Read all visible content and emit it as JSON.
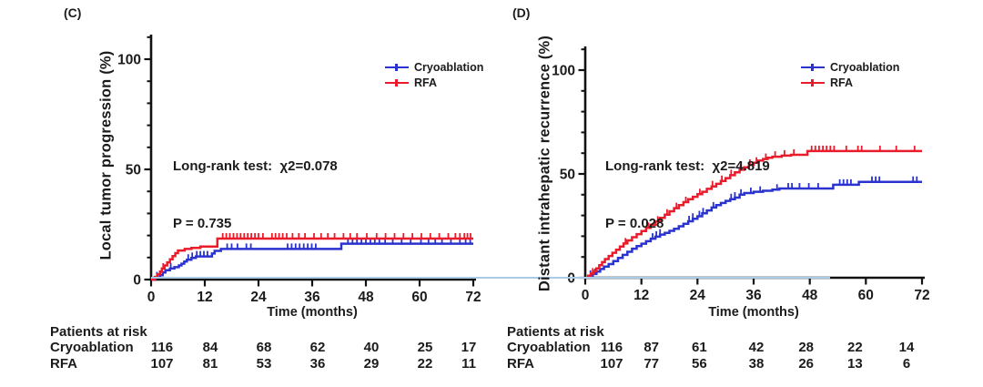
{
  "figure": {
    "background": "#ffffff"
  },
  "annotations": {
    "baseline_artifact_color": "#a9cbe8"
  },
  "chart_data": [
    {
      "panel_letter": "(C)",
      "type": "line",
      "subtype": "kaplan-meier-step",
      "ylabel": "Local tumor progression (%)",
      "xlabel": "Time (months)",
      "xticks": [
        0,
        12,
        24,
        36,
        48,
        60,
        72
      ],
      "yticks": [
        0,
        50,
        100
      ],
      "xlim": [
        0,
        72
      ],
      "ylim": [
        0,
        112
      ],
      "minor_y_step": 10,
      "grid": "off",
      "legend_position": "upper-right-inside",
      "stats": {
        "line1": "Long-rank test:  χ2=0.078",
        "line2": "P = 0.735"
      },
      "series": [
        {
          "name": "Cryoablation",
          "color": "#2a32cf",
          "points": [
            [
              0,
              0
            ],
            [
              1,
              1
            ],
            [
              2,
              2
            ],
            [
              2.6,
              3.2
            ],
            [
              3.2,
              4.2
            ],
            [
              4.2,
              5
            ],
            [
              5.2,
              5.6
            ],
            [
              6.2,
              6.4
            ],
            [
              6.8,
              7.2
            ],
            [
              7.4,
              8.2
            ],
            [
              8,
              9
            ],
            [
              9,
              9.8
            ],
            [
              10,
              10.5
            ],
            [
              13.6,
              11.8
            ],
            [
              14.2,
              13
            ],
            [
              15.6,
              13.9
            ],
            [
              42.5,
              16.3
            ],
            [
              72,
              16.3
            ]
          ],
          "censors": [
            1.3,
            4.4,
            8.3,
            9.2,
            10.2,
            11,
            11.8,
            12.6,
            17,
            18,
            19.3,
            21.3,
            22.3,
            30.5,
            31.4,
            32.3,
            33.2,
            34.1,
            35,
            35.9,
            36.8,
            44,
            45,
            46,
            47,
            48,
            49,
            50,
            51,
            52.3,
            54,
            56,
            58,
            60.3,
            62,
            63.5,
            65,
            67,
            69,
            70.3,
            71.3
          ]
        },
        {
          "name": "RFA",
          "color": "#ea1c2c",
          "points": [
            [
              0,
              0
            ],
            [
              0.8,
              1.2
            ],
            [
              1.4,
              2.4
            ],
            [
              2,
              3.6
            ],
            [
              2.4,
              5
            ],
            [
              3,
              6.4
            ],
            [
              3.6,
              7.8
            ],
            [
              4.2,
              9.2
            ],
            [
              4.8,
              10.6
            ],
            [
              5.4,
              12
            ],
            [
              6,
              13.2
            ],
            [
              7.5,
              13.9
            ],
            [
              9,
              14.4
            ],
            [
              11,
              15
            ],
            [
              14.8,
              18.6
            ],
            [
              72,
              18.6
            ]
          ],
          "censors": [
            2.7,
            16,
            16.8,
            17.6,
            18.4,
            19.2,
            20,
            20.8,
            21.6,
            22.4,
            23.2,
            24,
            25,
            27,
            27.8,
            28.6,
            29.4,
            30.3,
            31.6,
            33,
            34.4,
            36.4,
            38,
            39.5,
            41,
            43,
            44.5,
            46,
            48.2,
            50.4,
            52.4,
            54.4,
            56.4,
            58.4,
            60.4,
            62.4,
            64.4,
            66.4,
            68,
            69,
            70,
            70.7,
            71.4
          ]
        }
      ],
      "at_risk": {
        "header": "Patients at risk",
        "time_points": [
          0,
          12,
          24,
          36,
          48,
          60,
          72
        ],
        "rows": [
          {
            "label": "Cryoablation",
            "values": [
              116,
              84,
              68,
              62,
              40,
              25,
              17
            ]
          },
          {
            "label": "RFA",
            "values": [
              107,
              81,
              53,
              36,
              29,
              22,
              11
            ]
          }
        ]
      }
    },
    {
      "panel_letter": "(D)",
      "type": "line",
      "subtype": "kaplan-meier-step",
      "ylabel": "Distant intrahepatic recurrence (%)",
      "xlabel": "Time (months)",
      "xticks": [
        0,
        12,
        24,
        36,
        48,
        60,
        72
      ],
      "yticks": [
        0,
        50,
        100
      ],
      "xlim": [
        0,
        72
      ],
      "ylim": [
        0,
        112
      ],
      "minor_y_step": 10,
      "grid": "off",
      "legend_position": "upper-right-inside",
      "stats": {
        "line1": "Long-rank test:  χ2=4.819",
        "line2": "P = 0.028"
      },
      "series": [
        {
          "name": "Cryoablation",
          "color": "#2a32cf",
          "points": [
            [
              0,
              0
            ],
            [
              0.8,
              0.9
            ],
            [
              1.6,
              1.8
            ],
            [
              2.4,
              3
            ],
            [
              3.2,
              4.2
            ],
            [
              4,
              5.4
            ],
            [
              5,
              6.6
            ],
            [
              6,
              8
            ],
            [
              7,
              9.5
            ],
            [
              8,
              11
            ],
            [
              9,
              12.5
            ],
            [
              10,
              14
            ],
            [
              11,
              15.2
            ],
            [
              12,
              16.4
            ],
            [
              13,
              17.6
            ],
            [
              14,
              18.8
            ],
            [
              15,
              19.8
            ],
            [
              16,
              20.8
            ],
            [
              17,
              21.6
            ],
            [
              18,
              22.6
            ],
            [
              19,
              23.6
            ],
            [
              20,
              24.8
            ],
            [
              21,
              26
            ],
            [
              22,
              27.2
            ],
            [
              23,
              28.4
            ],
            [
              24,
              29.6
            ],
            [
              25,
              31
            ],
            [
              26,
              32.4
            ],
            [
              27,
              33.8
            ],
            [
              28,
              35
            ],
            [
              29,
              36
            ],
            [
              30,
              37
            ],
            [
              31,
              37.8
            ],
            [
              32,
              38.6
            ],
            [
              33,
              40
            ],
            [
              34,
              40.8
            ],
            [
              36,
              41.4
            ],
            [
              38,
              41.9
            ],
            [
              40,
              42.4
            ],
            [
              41.5,
              43
            ],
            [
              53,
              44.8
            ],
            [
              58.5,
              46.2
            ],
            [
              72,
              46.2
            ]
          ],
          "censors": [
            1.1,
            2.1,
            14.4,
            15.2,
            16,
            22.2,
            23,
            24.4,
            25.2,
            27.4,
            31.2,
            32,
            33.3,
            35.4,
            37.4,
            41,
            43.4,
            44.2,
            45.8,
            47.8,
            49.8,
            54.4,
            55.2,
            56,
            56.8,
            61.3,
            62.1,
            62.9,
            70.1,
            70.9
          ]
        },
        {
          "name": "RFA",
          "color": "#ea1c2c",
          "points": [
            [
              0,
              0
            ],
            [
              0.6,
              1
            ],
            [
              1.2,
              2
            ],
            [
              1.8,
              3.2
            ],
            [
              2.4,
              4.5
            ],
            [
              3,
              6
            ],
            [
              3.6,
              7.5
            ],
            [
              4.2,
              9
            ],
            [
              5,
              10.5
            ],
            [
              5.8,
              12
            ],
            [
              6.6,
              13.5
            ],
            [
              7.4,
              15
            ],
            [
              8.2,
              16.5
            ],
            [
              9,
              18
            ],
            [
              10,
              19.5
            ],
            [
              11,
              21
            ],
            [
              12,
              22.5
            ],
            [
              13,
              24
            ],
            [
              14,
              25.5
            ],
            [
              15,
              27
            ],
            [
              16,
              28.8
            ],
            [
              17,
              30.4
            ],
            [
              18,
              32
            ],
            [
              19,
              33.5
            ],
            [
              20,
              35
            ],
            [
              21,
              36.4
            ],
            [
              22,
              37.8
            ],
            [
              23,
              39
            ],
            [
              24,
              40.2
            ],
            [
              25,
              41.4
            ],
            [
              26,
              42.8
            ],
            [
              27,
              44
            ],
            [
              28,
              45.2
            ],
            [
              29,
              46.6
            ],
            [
              30,
              48
            ],
            [
              31,
              49.4
            ],
            [
              32,
              50.8
            ],
            [
              33,
              52
            ],
            [
              34,
              53.2
            ],
            [
              35,
              54.4
            ],
            [
              36,
              55.4
            ],
            [
              37,
              56.4
            ],
            [
              38,
              57.2
            ],
            [
              39,
              57.8
            ],
            [
              40,
              58.3
            ],
            [
              42,
              58.8
            ],
            [
              44,
              59.2
            ],
            [
              47.5,
              61
            ],
            [
              72,
              61
            ]
          ],
          "censors": [
            1.6,
            8.6,
            13.5,
            15.5,
            17.5,
            19.5,
            21.5,
            24.5,
            27.2,
            29.2,
            31.2,
            33.2,
            35.2,
            36.6,
            38.6,
            40.6,
            42.6,
            44.6,
            48.4,
            49.2,
            50,
            50.8,
            51.6,
            52.4,
            53.2,
            55.8,
            58.3,
            59.1,
            63,
            66.5,
            70.4
          ]
        }
      ],
      "at_risk": {
        "header": "Patients at risk",
        "time_points": [
          0,
          12,
          24,
          36,
          48,
          60,
          72
        ],
        "rows": [
          {
            "label": "Cryoablation",
            "values": [
              116,
              87,
              61,
              42,
              28,
              22,
              14
            ]
          },
          {
            "label": "RFA",
            "values": [
              107,
              77,
              56,
              38,
              26,
              13,
              6
            ]
          }
        ]
      }
    }
  ]
}
